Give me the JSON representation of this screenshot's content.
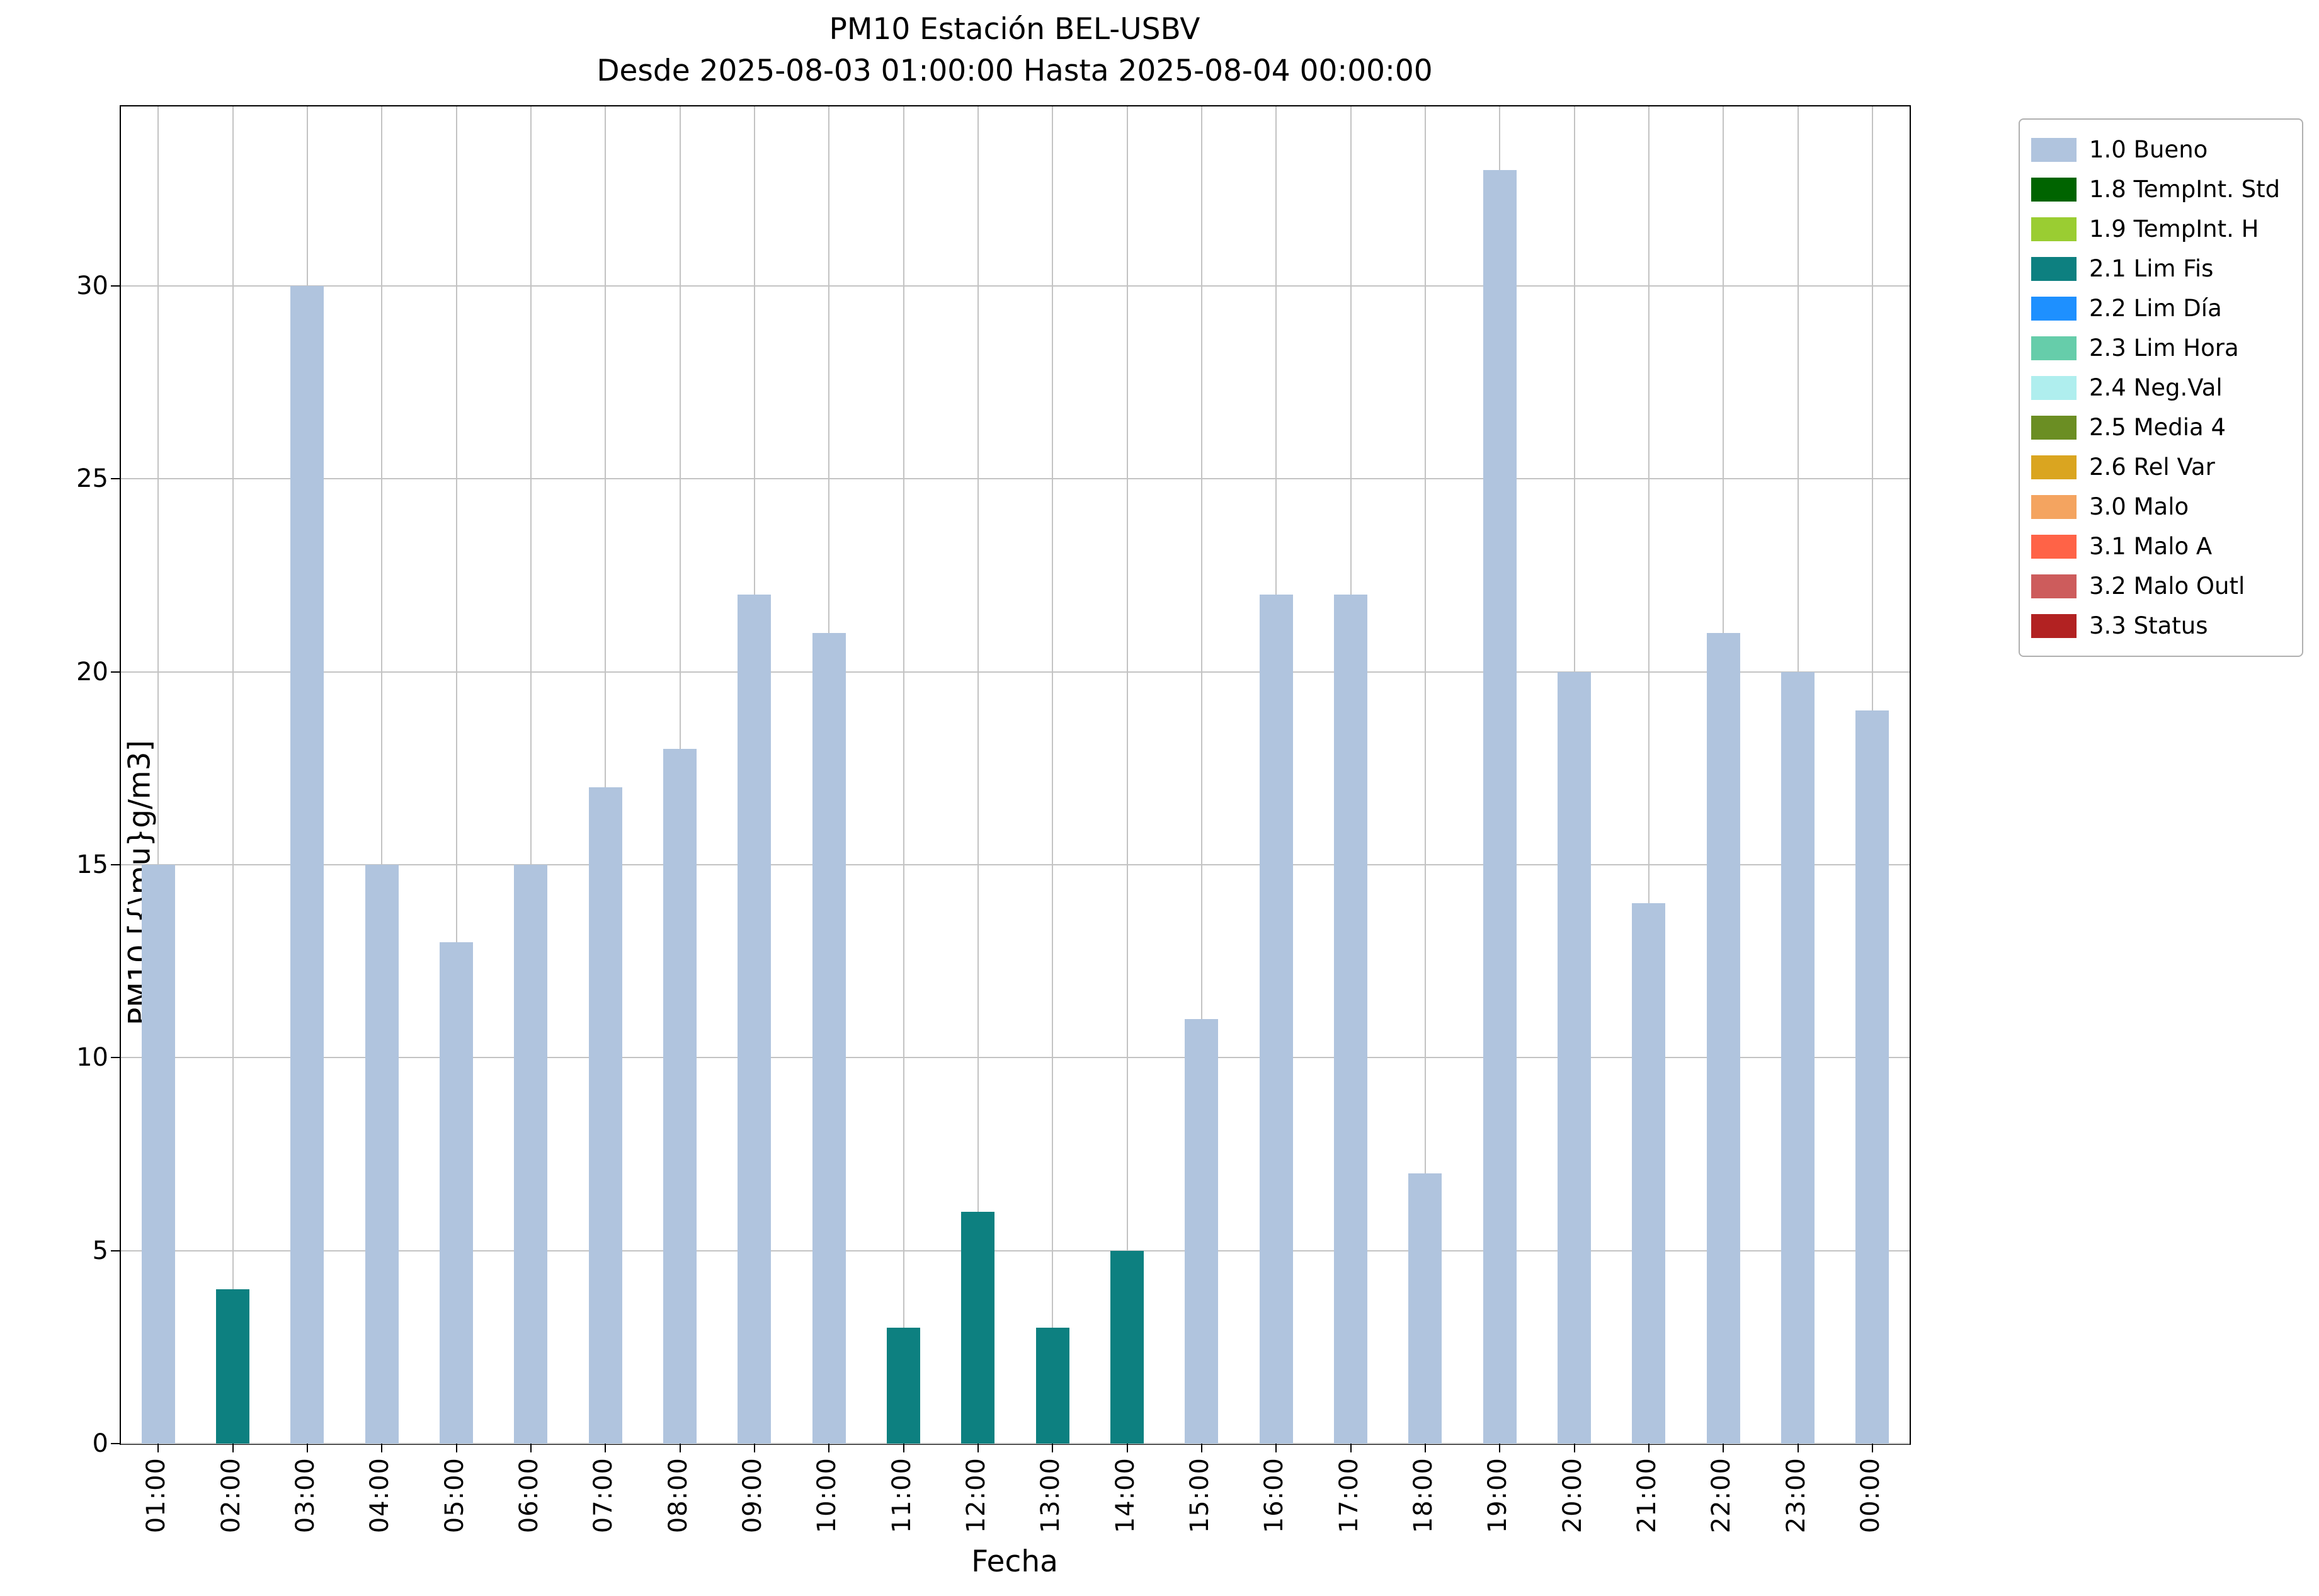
{
  "chart_data": {
    "type": "bar",
    "title": "PM10 Estación BEL-USBV",
    "subtitle": "Desde 2025-08-03 01:00:00 Hasta 2025-08-04 00:00:00",
    "xlabel": "Fecha",
    "ylabel": "PM10 [{\\mu}g/m3]",
    "ylim": [
      0,
      34.65
    ],
    "yticks": [
      0,
      5,
      10,
      15,
      20,
      25,
      30
    ],
    "grid": true,
    "legend_position": "outside-upper-right",
    "categories": [
      "01:00",
      "02:00",
      "03:00",
      "04:00",
      "05:00",
      "06:00",
      "07:00",
      "08:00",
      "09:00",
      "10:00",
      "11:00",
      "12:00",
      "13:00",
      "14:00",
      "15:00",
      "16:00",
      "17:00",
      "18:00",
      "19:00",
      "20:00",
      "21:00",
      "22:00",
      "23:00",
      "00:00"
    ],
    "values": [
      15,
      4,
      30,
      15,
      13,
      15,
      17,
      18,
      22,
      21,
      3,
      6,
      3,
      5,
      11,
      22,
      22,
      7,
      33,
      20,
      14,
      21,
      20,
      19
    ],
    "bar_status": [
      "1.0 Bueno",
      "2.1 Lim Fis",
      "1.0 Bueno",
      "1.0 Bueno",
      "1.0 Bueno",
      "1.0 Bueno",
      "1.0 Bueno",
      "1.0 Bueno",
      "1.0 Bueno",
      "1.0 Bueno",
      "2.1 Lim Fis",
      "2.1 Lim Fis",
      "2.1 Lim Fis",
      "2.1 Lim Fis",
      "1.0 Bueno",
      "1.0 Bueno",
      "1.0 Bueno",
      "1.0 Bueno",
      "1.0 Bueno",
      "1.0 Bueno",
      "1.0 Bueno",
      "1.0 Bueno",
      "1.0 Bueno",
      "1.0 Bueno"
    ],
    "legend": [
      {
        "label": "1.0 Bueno",
        "color": "#b0c4de"
      },
      {
        "label": "1.8 TempInt. Std",
        "color": "#006400"
      },
      {
        "label": "1.9 TempInt. H",
        "color": "#9acd32"
      },
      {
        "label": "2.1 Lim Fis",
        "color": "#0d8080"
      },
      {
        "label": "2.2 Lim Día",
        "color": "#1e90ff"
      },
      {
        "label": "2.3 Lim Hora",
        "color": "#66cdaa"
      },
      {
        "label": "2.4 Neg.Val",
        "color": "#afeeee"
      },
      {
        "label": "2.5 Media 4",
        "color": "#6b8e23"
      },
      {
        "label": "2.6 Rel Var",
        "color": "#daa520"
      },
      {
        "label": "3.0 Malo",
        "color": "#f4a460"
      },
      {
        "label": "3.1 Malo A",
        "color": "#ff6347"
      },
      {
        "label": "3.2 Malo Outl",
        "color": "#cd5c5c"
      },
      {
        "label": "3.3 Status",
        "color": "#b22222"
      }
    ]
  }
}
